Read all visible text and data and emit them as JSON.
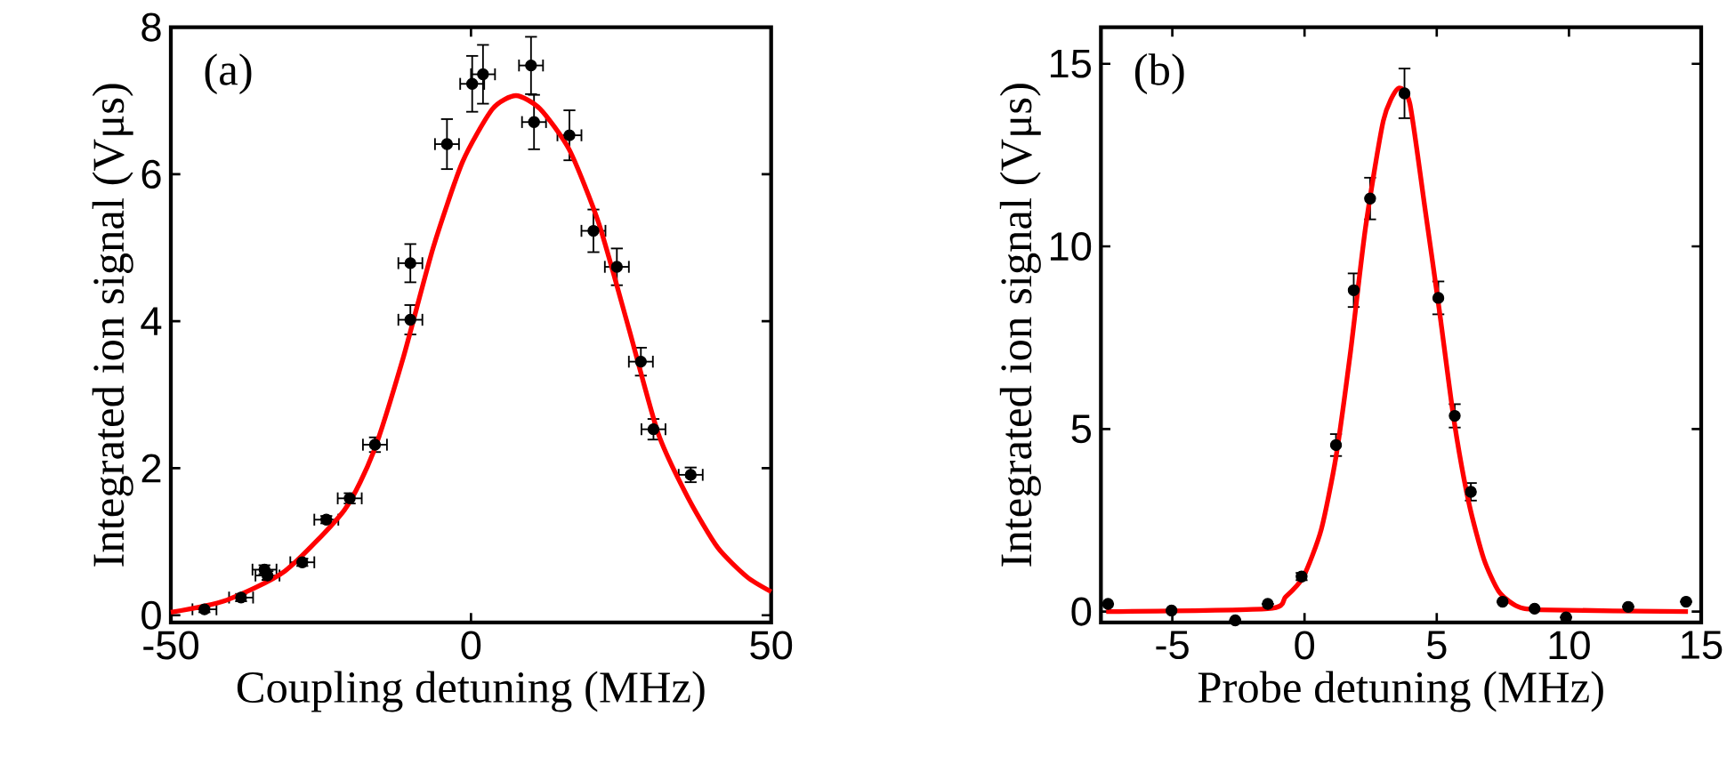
{
  "chart_data": [
    {
      "type": "scatter",
      "xlabel": "Coupling detuning (MHz)",
      "ylabel": "Integrated ion signal (Vμs)",
      "annotations": [
        "(a)"
      ],
      "xlim": [
        -50,
        50
      ],
      "ylim": [
        -0.1,
        8
      ],
      "xticks": [
        -50,
        0,
        50
      ],
      "yticks": [
        0,
        2,
        4,
        6,
        8
      ],
      "series": [
        {
          "type": "scatter",
          "color": "#000000",
          "marker": "circle",
          "x": [
            -44.4,
            -38.3,
            -34.4,
            -33.9,
            -28.1,
            -24.1,
            -20.2,
            -16.0,
            -10.1,
            -10.1,
            -4.0,
            0.2,
            2.0,
            10.0,
            10.5,
            16.4,
            20.4,
            24.3,
            28.3,
            30.4,
            36.6
          ],
          "values": [
            0.08,
            0.24,
            0.62,
            0.54,
            0.72,
            1.3,
            1.59,
            2.32,
            4.02,
            4.79,
            6.41,
            7.23,
            7.36,
            7.48,
            6.71,
            6.53,
            5.23,
            4.74,
            3.45,
            2.53,
            1.91
          ],
          "errors": [
            0.04,
            0.05,
            0.06,
            0.06,
            0.05,
            0.05,
            0.07,
            0.1,
            0.2,
            0.26,
            0.34,
            0.38,
            0.4,
            0.39,
            0.37,
            0.34,
            0.29,
            0.25,
            0.19,
            0.14,
            0.1
          ],
          "xerrors": [
            2,
            2,
            2,
            2,
            2,
            2,
            2,
            2,
            2,
            2,
            2,
            2,
            2,
            2,
            2,
            2,
            2,
            2,
            2,
            2,
            2
          ]
        },
        {
          "type": "line",
          "color": "#ff0000",
          "marker": "none",
          "x": [
            -50,
            -40.9,
            -31,
            -21.1,
            -16.2,
            -11.3,
            -6.3,
            -1.4,
            3.6,
            7.5,
            11.5,
            16.4,
            21.3,
            26.3,
            31.2,
            36.2,
            41.1,
            46,
            50
          ],
          "values": [
            0.04,
            0.2,
            0.6,
            1.43,
            2.23,
            3.5,
            5.0,
            6.17,
            6.89,
            7.07,
            6.89,
            6.33,
            5.33,
            3.9,
            2.47,
            1.59,
            0.92,
            0.52,
            0.32
          ]
        }
      ]
    },
    {
      "type": "scatter",
      "xlabel": "Probe detuning (MHz)",
      "ylabel": "Integrated ion signal (Vμs)",
      "annotations": [
        "(b)"
      ],
      "xlim": [
        -7.7,
        15
      ],
      "ylim": [
        -0.3,
        16
      ],
      "xticks": [
        -5,
        0,
        5,
        10,
        15
      ],
      "yticks": [
        0,
        5,
        10,
        15
      ],
      "series": [
        {
          "type": "scatter",
          "color": "#000000",
          "marker": "circle",
          "x": [
            -7.43,
            -5.03,
            -2.62,
            -1.39,
            -0.11,
            1.19,
            1.86,
            2.48,
            3.78,
            5.06,
            5.68,
            6.29,
            7.49,
            8.7,
            9.89,
            12.24,
            14.43
          ],
          "values": [
            0.21,
            0.03,
            -0.24,
            0.21,
            0.96,
            4.56,
            8.8,
            11.31,
            14.19,
            8.59,
            5.36,
            3.28,
            0.27,
            0.08,
            -0.16,
            0.13,
            0.27
          ],
          "errors": [
            null,
            null,
            null,
            null,
            0.1,
            0.3,
            0.46,
            0.57,
            0.68,
            0.45,
            0.32,
            0.24,
            null,
            null,
            null,
            null,
            null
          ]
        },
        {
          "type": "line",
          "color": "#ff0000",
          "marker": "none",
          "x": [
            -7.5,
            -1.39,
            -0.72,
            -0.04,
            0.63,
            1.19,
            1.74,
            2.3,
            2.98,
            3.53,
            3.98,
            4.54,
            5.1,
            5.66,
            6.22,
            6.78,
            7.34,
            8.0,
            8.9,
            14.5
          ],
          "values": [
            0.0,
            0.08,
            0.4,
            0.96,
            2.24,
            4.24,
            7.12,
            10.48,
            13.44,
            14.32,
            13.92,
            11.12,
            8.24,
            5.2,
            2.96,
            1.44,
            0.56,
            0.16,
            0.05,
            0.0
          ]
        }
      ]
    }
  ]
}
